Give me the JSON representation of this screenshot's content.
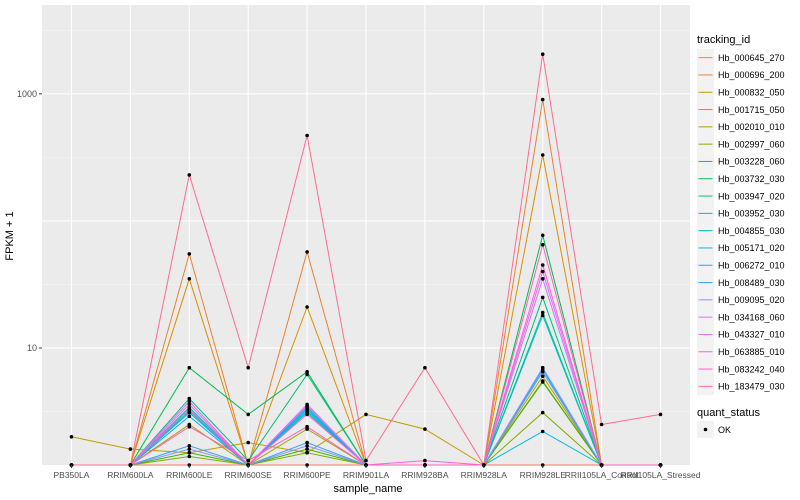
{
  "chart_data": {
    "type": "line",
    "xlabel": "sample_name",
    "ylabel": "FPKM + 1",
    "y_scale": "log10",
    "ylim": [
      1.2,
      5000
    ],
    "y_ticks": [
      10,
      1000
    ],
    "y_tick_labels": [
      "10",
      "1000"
    ],
    "grid": true,
    "background": "#EBEBEB",
    "legend_position": "right",
    "categories": [
      "PB350LA",
      "RRIM600LA",
      "RRIM600LE",
      "RRIM600SE",
      "RRIM600PE",
      "RRIM901LA",
      "RRIM928BA",
      "RRIM928LA",
      "RRIM928LE",
      "RRII105LA_Control",
      "RRII105LA_Stressed"
    ],
    "legend": {
      "title": "tracking_id",
      "shape_title": "quant_status",
      "shape_label": "OK"
    },
    "series": [
      {
        "name": "Hb_000645_270",
        "color": "#F8766D",
        "values": [
          1,
          1,
          1,
          1,
          1,
          1,
          1,
          1,
          1,
          1,
          1
        ]
      },
      {
        "name": "Hb_000696_200",
        "color": "#EA8331",
        "values": [
          1,
          1.1,
          55,
          1.2,
          57,
          1.1,
          1.2,
          1,
          900,
          1.1,
          1
        ]
      },
      {
        "name": "Hb_000832_050",
        "color": "#D89000",
        "values": [
          1,
          1.1,
          35,
          1.2,
          21,
          1.1,
          1.2,
          1,
          330,
          1.1,
          1
        ]
      },
      {
        "name": "Hb_001715_050",
        "color": "#C09B00",
        "values": [
          2,
          1.6,
          1.5,
          1.8,
          1.5,
          3,
          2.3,
          1,
          6,
          1.1,
          1
        ]
      },
      {
        "name": "Hb_002010_010",
        "color": "#A3A500",
        "values": [
          1,
          1.1,
          2.5,
          1.2,
          2.3,
          1.1,
          1.2,
          1,
          5.5,
          1.1,
          1
        ]
      },
      {
        "name": "Hb_002997_060",
        "color": "#7CAE00",
        "values": [
          1,
          1.1,
          1.4,
          1.2,
          1.5,
          1.1,
          1.2,
          1,
          3.1,
          1.1,
          1
        ]
      },
      {
        "name": "Hb_003228_060",
        "color": "#39B600",
        "values": [
          1,
          1.1,
          1.5,
          1.2,
          1.6,
          1.1,
          1.1,
          1,
          5.4,
          1.1,
          1
        ]
      },
      {
        "name": "Hb_003732_030",
        "color": "#00BB4E",
        "values": [
          1,
          1.2,
          7,
          3,
          6.5,
          1.2,
          1.2,
          1,
          77,
          1.2,
          1.2
        ]
      },
      {
        "name": "Hb_003947_020",
        "color": "#00BF7D",
        "values": [
          1,
          1.1,
          4,
          1.3,
          6.2,
          1.1,
          1.1,
          1,
          25,
          1.1,
          1
        ]
      },
      {
        "name": "Hb_003952_030",
        "color": "#00C1A3",
        "values": [
          1,
          1.1,
          3.4,
          1.2,
          3.3,
          1.1,
          1.1,
          1,
          19,
          1.1,
          1
        ]
      },
      {
        "name": "Hb_004855_030",
        "color": "#00BFC4",
        "values": [
          1,
          1.1,
          3.2,
          1.2,
          3.1,
          1.1,
          1.1,
          1,
          18,
          1.1,
          1
        ]
      },
      {
        "name": "Hb_005171_020",
        "color": "#00BAE0",
        "values": [
          1,
          1.1,
          3.1,
          1.2,
          3.2,
          1.1,
          1.1,
          1,
          2.2,
          1.1,
          1
        ]
      },
      {
        "name": "Hb_006272_010",
        "color": "#00B0F6",
        "values": [
          1,
          1.1,
          2.9,
          1.2,
          3.4,
          1.1,
          1.1,
          1,
          6.8,
          1.1,
          1
        ]
      },
      {
        "name": "Hb_008489_030",
        "color": "#35A2FF",
        "values": [
          1,
          1.1,
          1.7,
          1.2,
          1.8,
          1.1,
          1.1,
          1,
          6.5,
          1.1,
          1
        ]
      },
      {
        "name": "Hb_009095_020",
        "color": "#9590FF",
        "values": [
          1,
          1.1,
          1.6,
          1.2,
          1.7,
          1.1,
          1.1,
          1,
          7,
          1.1,
          1
        ]
      },
      {
        "name": "Hb_034168_060",
        "color": "#C77CFF",
        "values": [
          1,
          1.1,
          3.6,
          1.2,
          3.5,
          1.1,
          1.1,
          1,
          35,
          1.1,
          1
        ]
      },
      {
        "name": "Hb_043327_010",
        "color": "#E76BF3",
        "values": [
          1,
          1.1,
          3.8,
          1.2,
          3.6,
          1.1,
          1.1,
          1,
          40,
          1.1,
          1
        ]
      },
      {
        "name": "Hb_063885_010",
        "color": "#FA62DB",
        "values": [
          1,
          1.1,
          3.3,
          1.2,
          3.0,
          1.1,
          1.3,
          1,
          45,
          1.1,
          1
        ]
      },
      {
        "name": "Hb_083242_040",
        "color": "#FF62BC",
        "values": [
          1,
          1.1,
          2.4,
          1.3,
          2.4,
          1.1,
          1.2,
          1,
          65,
          1.1,
          1
        ]
      },
      {
        "name": "Hb_183479_030",
        "color": "#FF6C91",
        "values": [
          1,
          1.2,
          230,
          7,
          470,
          1.3,
          7,
          1.2,
          2050,
          2.5,
          3
        ]
      }
    ]
  }
}
